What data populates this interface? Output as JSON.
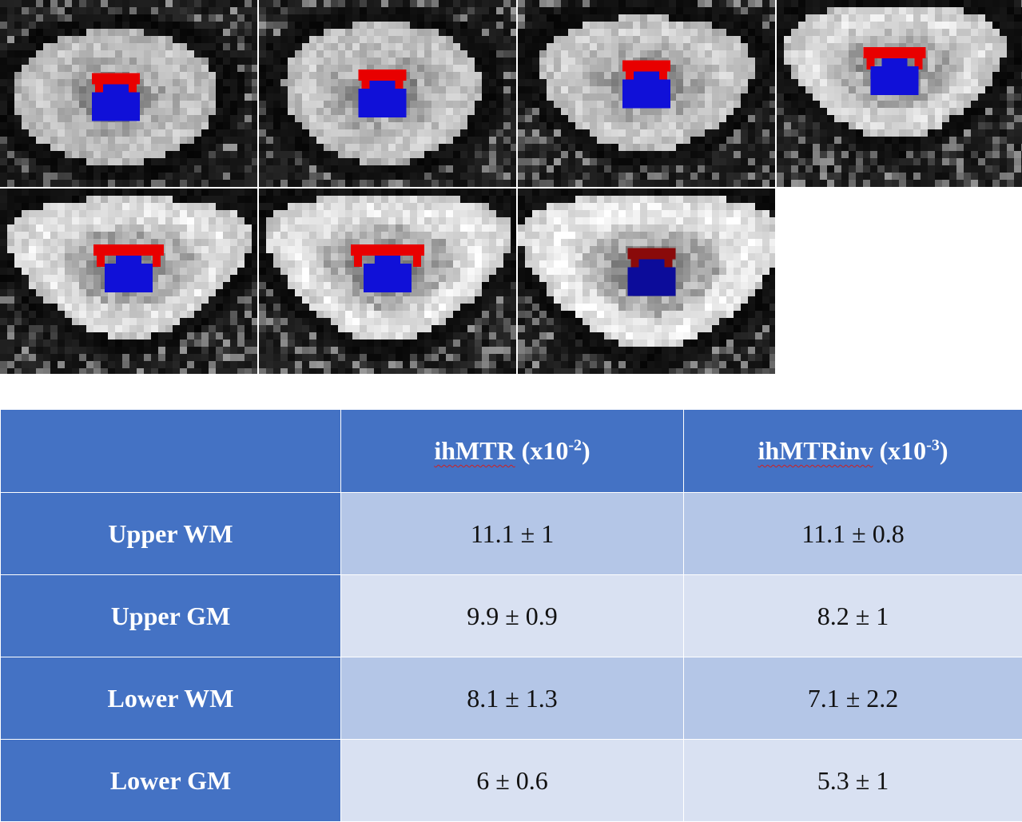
{
  "image_panels": {
    "count": 7,
    "roi_colors": {
      "upper": "#e80000",
      "lower": "#1010d8",
      "upper_dark": "#8a0a0a",
      "lower_dark": "#0c0c9a"
    }
  },
  "table": {
    "header": {
      "corner": "",
      "col1_name": "ihMTR",
      "col1_unit_pre": " (x10",
      "col1_exp": "-2",
      "col1_unit_post": ")",
      "col2_name": "ihMTRinv",
      "col2_unit_pre": " (x10",
      "col2_exp": "-3",
      "col2_unit_post": ")"
    },
    "rows": [
      {
        "label": "Upper WM",
        "ihmtr": "11.1 ± 1",
        "ihmtrinv": "11.1 ± 0.8"
      },
      {
        "label": "Upper GM",
        "ihmtr": "9.9 ± 0.9",
        "ihmtrinv": "8.2 ± 1"
      },
      {
        "label": "Lower WM",
        "ihmtr": "8.1 ± 1.3",
        "ihmtrinv": "7.1 ± 2.2"
      },
      {
        "label": "Lower GM",
        "ihmtr": "6 ± 0.6",
        "ihmtrinv": "5.3 ± 1"
      }
    ],
    "colors": {
      "header_bg": "#4472c4",
      "row_odd_bg": "#b4c6e7",
      "row_even_bg": "#d9e1f2"
    }
  }
}
